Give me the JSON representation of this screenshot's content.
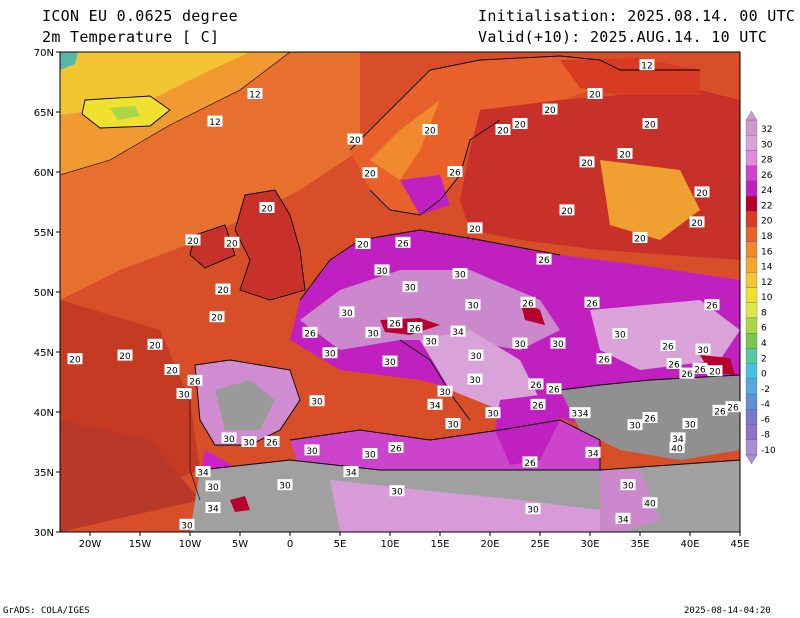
{
  "header": {
    "model": "ICON EU 0.0625 degree",
    "field": "2m Temperature [ C]",
    "init": "Initialisation: 2025.08.14. 00 UTC",
    "valid": "Valid(+10): 2025.AUG.14. 10 UTC"
  },
  "footer": {
    "credit": "GrADS: COLA/IGES",
    "timestamp": "2025-08-14-04:20"
  },
  "map": {
    "lon_range": [
      -23,
      45
    ],
    "lat_range": [
      30,
      70
    ],
    "lon_ticks": [
      "20W",
      "15W",
      "10W",
      "5W",
      "0",
      "5E",
      "10E",
      "15E",
      "20E",
      "25E",
      "30E",
      "35E",
      "40E",
      "45E"
    ],
    "lat_ticks": [
      "30N",
      "35N",
      "40N",
      "45N",
      "50N",
      "55N",
      "60N",
      "65N",
      "70N"
    ]
  },
  "colorbar": {
    "labels": [
      "32",
      "30",
      "28",
      "26",
      "24",
      "22",
      "20",
      "18",
      "16",
      "14",
      "12",
      "10",
      "8",
      "6",
      "4",
      "2",
      "0",
      "-2",
      "-4",
      "-6",
      "-8",
      "-10"
    ],
    "colors": [
      "#cc99cc",
      "#d9a3d9",
      "#e08be0",
      "#cc44cc",
      "#c020c0",
      "#b8002e",
      "#d83a22",
      "#e8602a",
      "#f08a2e",
      "#f4a830",
      "#f4c830",
      "#f0e030",
      "#dce84a",
      "#a8d848",
      "#78c850",
      "#58c8a0",
      "#48c0e0",
      "#58a8e0",
      "#6090d8",
      "#7878d0",
      "#9070c8",
      "#a890d0"
    ]
  },
  "contour_labels": [
    {
      "v": "12",
      "lon": -7.5,
      "lat": 64.2
    },
    {
      "v": "12",
      "lon": -3.5,
      "lat": 66.5
    },
    {
      "v": "12",
      "lon": 35.7,
      "lat": 68.9
    },
    {
      "v": "20",
      "lon": 30.5,
      "lat": 66.5
    },
    {
      "v": "20",
      "lon": 26.0,
      "lat": 65.2
    },
    {
      "v": "20",
      "lon": 36.0,
      "lat": 64.0
    },
    {
      "v": "20",
      "lon": 14.0,
      "lat": 63.5
    },
    {
      "v": "20",
      "lon": 21.3,
      "lat": 63.5
    },
    {
      "v": "20",
      "lon": 23.0,
      "lat": 64.0
    },
    {
      "v": "20",
      "lon": 33.5,
      "lat": 61.5
    },
    {
      "v": "20",
      "lon": 6.5,
      "lat": 62.7
    },
    {
      "v": "20",
      "lon": 8.0,
      "lat": 59.9
    },
    {
      "v": "26",
      "lon": 16.5,
      "lat": 60.0
    },
    {
      "v": "20",
      "lon": 29.7,
      "lat": 60.8
    },
    {
      "v": "20",
      "lon": -2.3,
      "lat": 57.0
    },
    {
      "v": "20",
      "lon": 27.7,
      "lat": 56.8
    },
    {
      "v": "20",
      "lon": 41.2,
      "lat": 58.3
    },
    {
      "v": "20",
      "lon": 40.7,
      "lat": 55.8
    },
    {
      "v": "20",
      "lon": 35.0,
      "lat": 54.5
    },
    {
      "v": "20",
      "lon": -9.7,
      "lat": 54.3
    },
    {
      "v": "20",
      "lon": -5.8,
      "lat": 54.1
    },
    {
      "v": "20",
      "lon": 7.3,
      "lat": 54.0
    },
    {
      "v": "26",
      "lon": 11.3,
      "lat": 54.1
    },
    {
      "v": "20",
      "lon": 18.5,
      "lat": 55.3
    },
    {
      "v": "26",
      "lon": 25.4,
      "lat": 52.7
    },
    {
      "v": "30",
      "lon": 9.2,
      "lat": 51.8
    },
    {
      "v": "30",
      "lon": 17.0,
      "lat": 51.5
    },
    {
      "v": "30",
      "lon": 12.0,
      "lat": 50.4
    },
    {
      "v": "20",
      "lon": -6.7,
      "lat": 50.2
    },
    {
      "v": "26",
      "lon": 23.8,
      "lat": 49.1
    },
    {
      "v": "26",
      "lon": 30.2,
      "lat": 49.1
    },
    {
      "v": "26",
      "lon": 42.2,
      "lat": 48.9
    },
    {
      "v": "30",
      "lon": 18.3,
      "lat": 48.9
    },
    {
      "v": "30",
      "lon": 5.7,
      "lat": 48.3
    },
    {
      "v": "20",
      "lon": -7.3,
      "lat": 47.9
    },
    {
      "v": "26",
      "lon": 2.0,
      "lat": 46.6
    },
    {
      "v": "30",
      "lon": 8.3,
      "lat": 46.6
    },
    {
      "v": "26",
      "lon": 10.5,
      "lat": 47.4
    },
    {
      "v": "26",
      "lon": 12.5,
      "lat": 47.0
    },
    {
      "v": "34",
      "lon": 16.8,
      "lat": 46.7
    },
    {
      "v": "30",
      "lon": 14.1,
      "lat": 45.9
    },
    {
      "v": "30",
      "lon": 33.0,
      "lat": 46.5
    },
    {
      "v": "30",
      "lon": 23.0,
      "lat": 45.7
    },
    {
      "v": "30",
      "lon": 26.8,
      "lat": 45.7
    },
    {
      "v": "26",
      "lon": 37.8,
      "lat": 45.5
    },
    {
      "v": "30",
      "lon": 41.3,
      "lat": 45.2
    },
    {
      "v": "20",
      "lon": -21.5,
      "lat": 44.4
    },
    {
      "v": "20",
      "lon": -16.5,
      "lat": 44.7
    },
    {
      "v": "20",
      "lon": -13.5,
      "lat": 45.6
    },
    {
      "v": "30",
      "lon": 4.0,
      "lat": 44.9
    },
    {
      "v": "30",
      "lon": 10.0,
      "lat": 44.2
    },
    {
      "v": "30",
      "lon": 18.6,
      "lat": 44.7
    },
    {
      "v": "26",
      "lon": 31.4,
      "lat": 44.4
    },
    {
      "v": "26",
      "lon": 38.4,
      "lat": 44.0
    },
    {
      "v": "26",
      "lon": 39.7,
      "lat": 43.2
    },
    {
      "v": "26",
      "lon": 41.0,
      "lat": 43.6
    },
    {
      "v": "20",
      "lon": 42.5,
      "lat": 43.4
    },
    {
      "v": "20",
      "lon": -11.8,
      "lat": 43.5
    },
    {
      "v": "26",
      "lon": -9.5,
      "lat": 42.6
    },
    {
      "v": "30",
      "lon": -10.6,
      "lat": 41.5
    },
    {
      "v": "30",
      "lon": 2.7,
      "lat": 40.9
    },
    {
      "v": "30",
      "lon": 15.5,
      "lat": 41.7
    },
    {
      "v": "30",
      "lon": 18.5,
      "lat": 42.7
    },
    {
      "v": "34",
      "lon": 14.5,
      "lat": 40.6
    },
    {
      "v": "26",
      "lon": 24.6,
      "lat": 42.3
    },
    {
      "v": "26",
      "lon": 26.4,
      "lat": 41.9
    },
    {
      "v": "30",
      "lon": 20.3,
      "lat": 39.9
    },
    {
      "v": "26",
      "lon": 24.8,
      "lat": 40.6
    },
    {
      "v": "334",
      "lon": 29.0,
      "lat": 39.9
    },
    {
      "v": "26",
      "lon": 36.0,
      "lat": 39.5
    },
    {
      "v": "30",
      "lon": 34.5,
      "lat": 38.9
    },
    {
      "v": "30",
      "lon": 40.0,
      "lat": 39.0
    },
    {
      "v": "26",
      "lon": 43.0,
      "lat": 40.1
    },
    {
      "v": "26",
      "lon": 44.3,
      "lat": 40.4
    },
    {
      "v": "30",
      "lon": 16.3,
      "lat": 39.0
    },
    {
      "v": "34",
      "lon": 38.8,
      "lat": 37.8
    },
    {
      "v": "40",
      "lon": 38.7,
      "lat": 37.0
    },
    {
      "v": "30",
      "lon": -6.1,
      "lat": 37.8
    },
    {
      "v": "30",
      "lon": -4.1,
      "lat": 37.5
    },
    {
      "v": "26",
      "lon": -1.8,
      "lat": 37.5
    },
    {
      "v": "30",
      "lon": 2.2,
      "lat": 36.8
    },
    {
      "v": "30",
      "lon": 8.0,
      "lat": 36.5
    },
    {
      "v": "26",
      "lon": 10.6,
      "lat": 37.0
    },
    {
      "v": "34",
      "lon": 30.3,
      "lat": 36.6
    },
    {
      "v": "34",
      "lon": -8.7,
      "lat": 35.0
    },
    {
      "v": "34",
      "lon": 6.1,
      "lat": 35.0
    },
    {
      "v": "26",
      "lon": 24.0,
      "lat": 35.8
    },
    {
      "v": "30",
      "lon": -7.7,
      "lat": 33.8
    },
    {
      "v": "30",
      "lon": -0.5,
      "lat": 33.9
    },
    {
      "v": "30",
      "lon": 10.7,
      "lat": 33.4
    },
    {
      "v": "30",
      "lon": 33.8,
      "lat": 33.9
    },
    {
      "v": "34",
      "lon": -7.7,
      "lat": 32.0
    },
    {
      "v": "30",
      "lon": 24.3,
      "lat": 31.9
    },
    {
      "v": "40",
      "lon": 36.0,
      "lat": 32.4
    },
    {
      "v": "34",
      "lon": 33.3,
      "lat": 31.1
    },
    {
      "v": "30",
      "lon": -10.3,
      "lat": 30.6
    }
  ]
}
